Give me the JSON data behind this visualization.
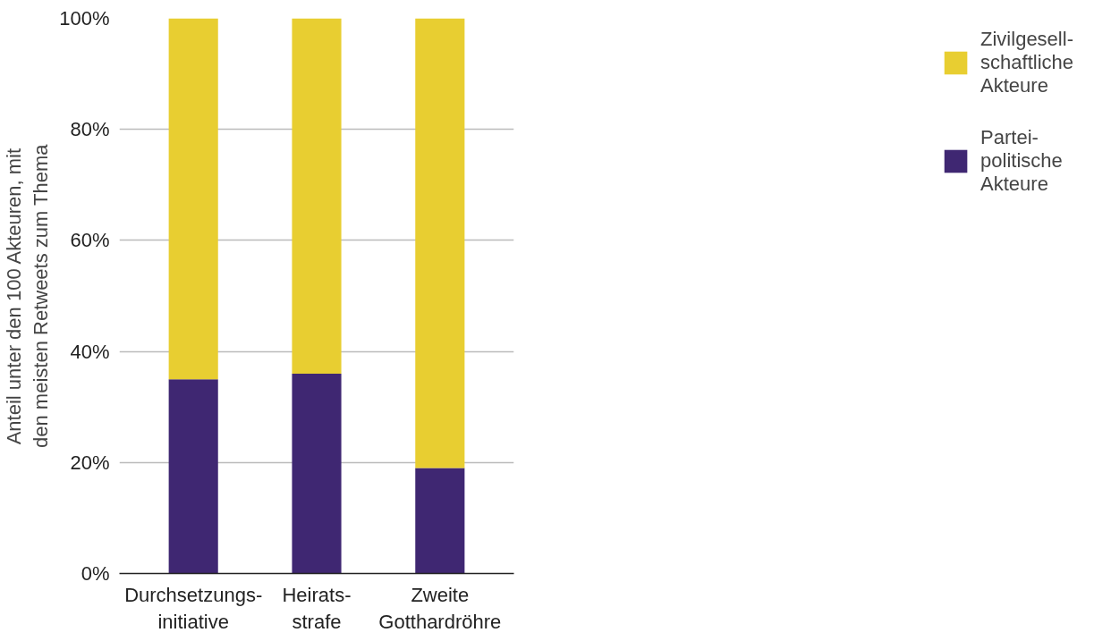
{
  "chart_data": {
    "type": "bar",
    "stacked": true,
    "ylabel": "Anteil unter den 100 Akteuren, mit\nden meisten Retweets zum Thema",
    "categories": [
      "Durchsetzungs-\ninitiative",
      "Heirats-\nstrafe",
      "Zweite\nGotthardröhre"
    ],
    "series": [
      {
        "name": "Partei-\npolitische\nAkteure",
        "color": "#3f2772",
        "values": [
          35,
          36,
          19
        ]
      },
      {
        "name": "Zivilgesell-\nschaftliche\nAkteure",
        "color": "#e8ce31",
        "values": [
          65,
          64,
          81
        ]
      }
    ],
    "ylim": [
      0,
      100
    ],
    "yticks": [
      {
        "value": 0,
        "label": "0%"
      },
      {
        "value": 20,
        "label": "20%"
      },
      {
        "value": 40,
        "label": "40%"
      },
      {
        "value": 60,
        "label": "60%"
      },
      {
        "value": 80,
        "label": "80%"
      },
      {
        "value": 100,
        "label": "100%"
      }
    ],
    "grid": "y",
    "legend": "right"
  }
}
